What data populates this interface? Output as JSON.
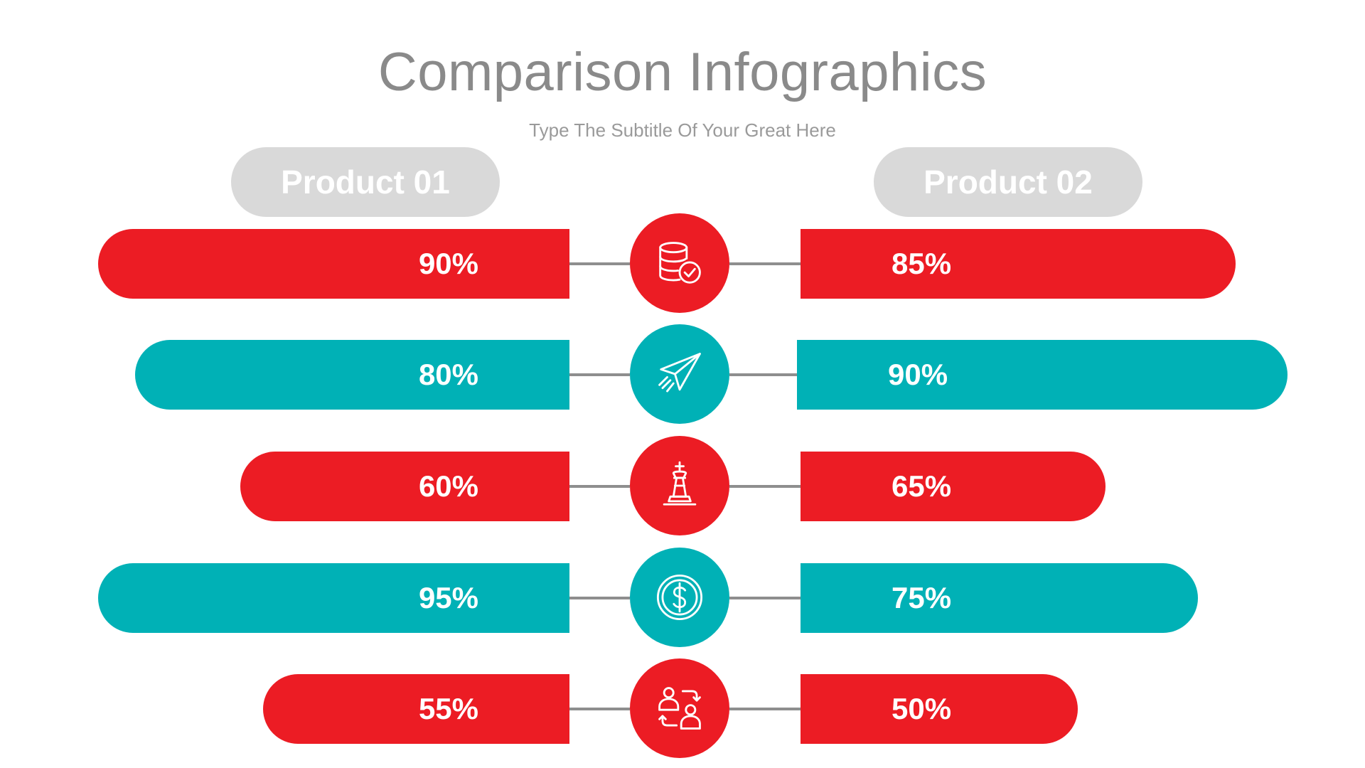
{
  "header": {
    "title": "Comparison Infographics",
    "subtitle": "Type The Subtitle Of Your Great Here"
  },
  "products": {
    "left": "Product 01",
    "right": "Product 02"
  },
  "colors": {
    "red": "#ec1c24",
    "teal": "#00b1b6",
    "header_pill": "#d9d9d9",
    "title_gray": "#8a8a8a",
    "connector": "#8e8e8e"
  },
  "rows": [
    {
      "icon": "database-check-icon",
      "color": "red",
      "left": "90%",
      "right": "85%"
    },
    {
      "icon": "paper-plane-icon",
      "color": "teal",
      "left": "80%",
      "right": "90%"
    },
    {
      "icon": "chess-king-icon",
      "color": "red",
      "left": "60%",
      "right": "65%"
    },
    {
      "icon": "dollar-coin-icon",
      "color": "teal",
      "left": "95%",
      "right": "75%"
    },
    {
      "icon": "user-exchange-icon",
      "color": "red",
      "left": "55%",
      "right": "50%"
    }
  ]
}
